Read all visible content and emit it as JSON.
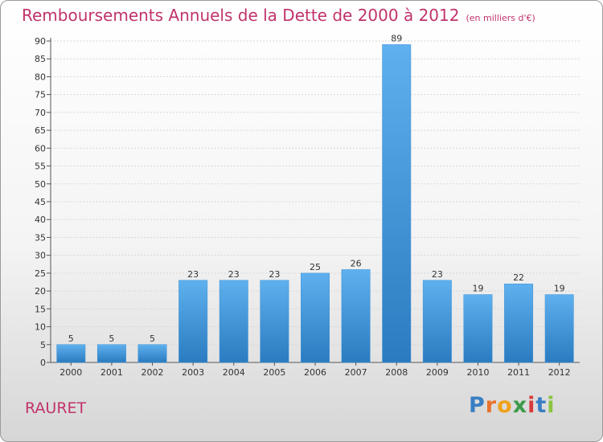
{
  "chart_data": {
    "type": "bar",
    "title": "Remboursements Annuels de la Dette de 2000 à 2012",
    "subtitle": "(en milliers d'€)",
    "categories": [
      "2000",
      "2001",
      "2002",
      "2003",
      "2004",
      "2005",
      "2006",
      "2007",
      "2008",
      "2009",
      "2010",
      "2011",
      "2012"
    ],
    "values": [
      5,
      5,
      5,
      23,
      23,
      23,
      25,
      26,
      89,
      23,
      19,
      22,
      19
    ],
    "ylim": [
      0,
      90
    ],
    "yticks": [
      0,
      5,
      10,
      15,
      20,
      25,
      30,
      35,
      40,
      45,
      50,
      55,
      60,
      65,
      70,
      75,
      80,
      85,
      90
    ],
    "grid": true,
    "bar_color": "#3d93d8",
    "bar_top_color": "#5fb0ee",
    "bar_bottom_color": "#2a7bc0"
  },
  "footer": {
    "city": "RAURET",
    "logo_letters": [
      {
        "ch": "P",
        "color": "#3a7fc4"
      },
      {
        "ch": "r",
        "color": "#e8722b"
      },
      {
        "ch": "o",
        "color": "#f0a21b"
      },
      {
        "ch": "x",
        "color": "#3c9a4a"
      },
      {
        "ch": "i",
        "color": "#d93a3a"
      },
      {
        "ch": "t",
        "color": "#3a7fc4"
      },
      {
        "ch": "i",
        "color": "#8ac43f"
      }
    ]
  }
}
